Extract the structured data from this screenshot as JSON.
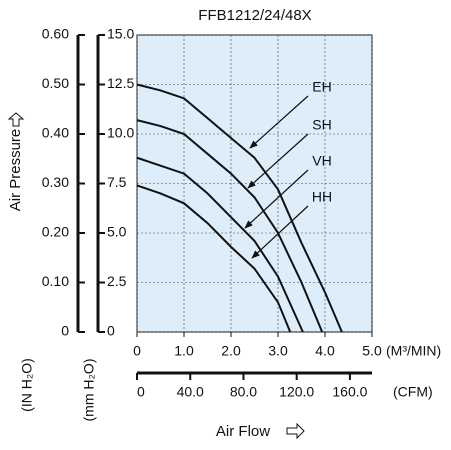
{
  "chart_data": {
    "type": "line",
    "title": "FFB1212/24/48X",
    "y_label": "Air Pressure",
    "y_unit": "(mm H₂O)",
    "y2_unit": "(IN H₂O)",
    "x_label": "Air Flow",
    "x_unit": "(M³/MIN)",
    "x2_unit": "(CFM)",
    "xlim": [
      0,
      5
    ],
    "xticks": [
      0,
      {
        "value": 1,
        "label": "1.0"
      },
      {
        "value": 2,
        "label": "2.0"
      },
      {
        "value": 3,
        "label": "3.0"
      },
      {
        "value": 4,
        "label": "4.0"
      },
      {
        "value": 5,
        "label": "5.0"
      }
    ],
    "x2lim": [
      0,
      176.6
    ],
    "x2ticks": [
      0,
      {
        "value": 40,
        "label": "40.0"
      },
      {
        "value": 80,
        "label": "80.0"
      },
      {
        "value": 120,
        "label": "120.0"
      },
      {
        "value": 160,
        "label": "160.0"
      }
    ],
    "ylim": [
      0,
      15
    ],
    "yticks": [
      0,
      2.5,
      {
        "value": 5,
        "label": "5.0"
      },
      7.5,
      {
        "value": 10,
        "label": "10.0"
      },
      12.5,
      {
        "value": 15,
        "label": "15.0"
      }
    ],
    "y2lim": [
      0,
      0.6
    ],
    "y2ticks": [
      0,
      {
        "value": 0.1,
        "label": "0.10"
      },
      {
        "value": 0.2,
        "label": "0.20"
      },
      {
        "value": 0.3,
        "label": "0.30"
      },
      {
        "value": 0.4,
        "label": "0.40"
      },
      {
        "value": 0.5,
        "label": "0.50"
      },
      {
        "value": 0.6,
        "label": "0.60"
      }
    ],
    "grid": true,
    "plot_background": "#ddeefa",
    "series": [
      {
        "name": "EH",
        "color": "#111111",
        "x": [
          0,
          0.5,
          1,
          1.5,
          2,
          2.5,
          3,
          3.5,
          4,
          4.36
        ],
        "values": [
          12.5,
          12.2,
          11.8,
          10.8,
          9.8,
          8.8,
          7.2,
          4.5,
          2,
          0
        ]
      },
      {
        "name": "SH",
        "color": "#111111",
        "x": [
          0,
          0.5,
          1,
          1.5,
          2,
          2.5,
          3,
          3.5,
          3.94
        ],
        "values": [
          10.7,
          10.4,
          10,
          9,
          8,
          6.8,
          5,
          2.5,
          0
        ]
      },
      {
        "name": "VH",
        "color": "#111111",
        "x": [
          0,
          0.5,
          1,
          1.5,
          2,
          2.5,
          3,
          3.53
        ],
        "values": [
          8.8,
          8.4,
          8,
          7,
          5.8,
          4.6,
          2.8,
          0
        ]
      },
      {
        "name": "HH",
        "color": "#111111",
        "x": [
          0,
          0.5,
          1,
          1.5,
          2,
          2.5,
          3,
          3.26
        ],
        "values": [
          7.4,
          7,
          6.5,
          5.5,
          4.3,
          3.2,
          1.5,
          0
        ]
      }
    ]
  }
}
